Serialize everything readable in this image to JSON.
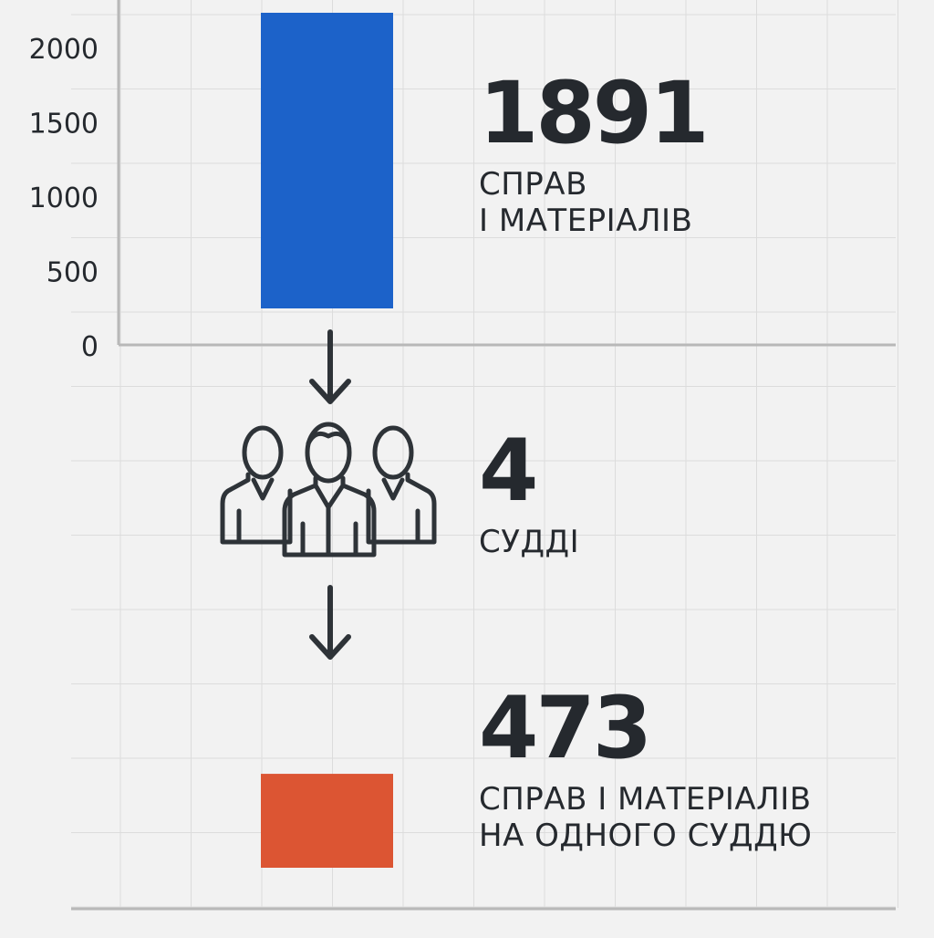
{
  "chart_data": {
    "type": "bar",
    "y_ticks": [
      "0",
      "500",
      "1000",
      "1500",
      "2000"
    ],
    "ylim": [
      0,
      2200
    ],
    "grid": true,
    "bars": [
      {
        "value": 1891,
        "color": "#1c62c9"
      },
      {
        "value": 473,
        "color": "#dc5533"
      }
    ]
  },
  "stats": [
    {
      "number": "1891",
      "label_lines": [
        "СПРАВ",
        "І МАТЕРІАЛІВ"
      ]
    },
    {
      "number": "4",
      "label_lines": [
        "СУДДІ"
      ]
    },
    {
      "number": "473",
      "label_lines": [
        "СПРАВ І МАТЕРІАЛІВ",
        "НА ОДНОГО СУДДЮ"
      ]
    }
  ],
  "icons": [
    "arrow-down-icon",
    "judges-group-icon",
    "arrow-down-icon"
  ],
  "colors": {
    "text": "#25292e",
    "axis": "#b8b8b8",
    "grid": "#dcdcdc",
    "background": "#f2f2f2"
  }
}
